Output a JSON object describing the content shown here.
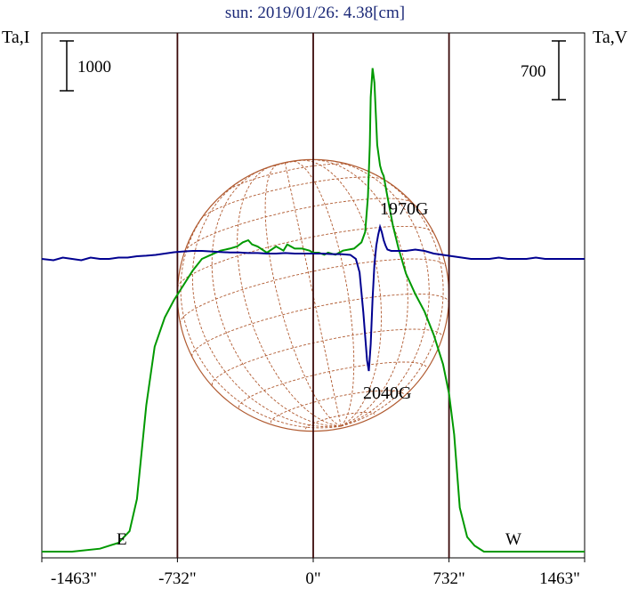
{
  "chart_data": {
    "type": "line",
    "title": "sun: 2019/01/26: 4.38[cm]",
    "y_left_label": "Ta,I",
    "y_right_label": "Ta,V",
    "scale_bar_left": "1000",
    "scale_bar_right": "700",
    "xlim": [
      -1463,
      1463
    ],
    "x_ticks": [
      {
        "value": -1463,
        "label": "-1463\""
      },
      {
        "value": -732,
        "label": "-732\""
      },
      {
        "value": 0,
        "label": "0\""
      },
      {
        "value": 732,
        "label": "732\""
      },
      {
        "value": 1463,
        "label": "1463\""
      }
    ],
    "limb_lines": [
      -732,
      0,
      732
    ],
    "limb_labels": {
      "east": "E",
      "west": "W"
    },
    "disk_radius": 732,
    "annotations": [
      {
        "text": "1970G",
        "x": 380,
        "y": 0.53
      },
      {
        "text": "2040G",
        "x": 310,
        "y": -0.45
      }
    ],
    "colors": {
      "intensity": "#009900",
      "polarization": "#000090",
      "disk": "#b05a30",
      "limb_lines": "#3a0a0a",
      "title": "#1c2a78"
    },
    "series": [
      {
        "name": "Ta,I",
        "color": "#009900",
        "x": [
          -1463,
          -1300,
          -1150,
          -1050,
          -990,
          -950,
          -900,
          -855,
          -800,
          -750,
          -700,
          -650,
          -600,
          -550,
          -500,
          -450,
          -410,
          -380,
          -350,
          -330,
          -300,
          -250,
          -200,
          -160,
          -140,
          -100,
          -60,
          -20,
          0,
          30,
          60,
          80,
          120,
          160,
          220,
          260,
          280,
          295,
          305,
          310,
          320,
          330,
          345,
          360,
          370,
          380,
          400,
          430,
          460,
          500,
          550,
          600,
          650,
          700,
          732,
          760,
          790,
          830,
          870,
          920,
          1000,
          1100,
          1200,
          1300,
          1463
        ],
        "y": [
          -1.0,
          -1.0,
          -0.99,
          -0.97,
          -0.93,
          -0.82,
          -0.5,
          -0.3,
          -0.2,
          -0.14,
          -0.09,
          -0.04,
          0.0,
          0.02,
          0.04,
          0.05,
          0.06,
          0.08,
          0.09,
          0.07,
          0.06,
          0.03,
          0.06,
          0.04,
          0.07,
          0.05,
          0.05,
          0.04,
          0.03,
          0.03,
          0.02,
          0.03,
          0.02,
          0.04,
          0.05,
          0.08,
          0.13,
          0.3,
          0.55,
          0.78,
          0.92,
          0.85,
          0.55,
          0.45,
          0.42,
          0.4,
          0.3,
          0.16,
          0.05,
          -0.05,
          -0.12,
          -0.18,
          -0.26,
          -0.36,
          -0.46,
          -0.6,
          -0.85,
          -0.95,
          -0.98,
          -1.0,
          -1.0,
          -1.0,
          -1.0,
          -1.0,
          -1.0
        ]
      },
      {
        "name": "Ta,V",
        "color": "#000090",
        "x": [
          -1463,
          -1400,
          -1350,
          -1300,
          -1250,
          -1200,
          -1150,
          -1100,
          -1050,
          -1000,
          -950,
          -900,
          -850,
          -800,
          -750,
          -700,
          -650,
          -600,
          -550,
          -500,
          -450,
          -400,
          -350,
          -300,
          -250,
          -200,
          -150,
          -100,
          -50,
          0,
          50,
          100,
          150,
          200,
          230,
          250,
          270,
          290,
          300,
          310,
          320,
          330,
          340,
          350,
          360,
          370,
          380,
          390,
          400,
          420,
          450,
          500,
          550,
          600,
          650,
          700,
          750,
          800,
          850,
          900,
          950,
          1000,
          1050,
          1100,
          1150,
          1200,
          1250,
          1300,
          1350,
          1400,
          1463
        ],
        "y": [
          0.0,
          -0.005,
          0.005,
          0.0,
          -0.005,
          0.005,
          0.0,
          0.0,
          0.005,
          0.005,
          0.01,
          0.012,
          0.015,
          0.02,
          0.025,
          0.028,
          0.03,
          0.03,
          0.028,
          0.026,
          0.024,
          0.024,
          0.022,
          0.022,
          0.02,
          0.02,
          0.022,
          0.02,
          0.02,
          0.02,
          0.02,
          0.018,
          0.018,
          0.015,
          0.0,
          -0.05,
          -0.2,
          -0.38,
          -0.42,
          -0.32,
          -0.15,
          -0.02,
          0.05,
          0.09,
          0.12,
          0.1,
          0.07,
          0.05,
          0.035,
          0.03,
          0.03,
          0.03,
          0.035,
          0.03,
          0.02,
          0.015,
          0.01,
          0.005,
          0.0,
          0.0,
          0.0,
          0.005,
          0.0,
          0.0,
          0.0,
          0.005,
          0.0,
          0.0,
          0.0,
          0.0,
          0.0
        ]
      }
    ]
  }
}
